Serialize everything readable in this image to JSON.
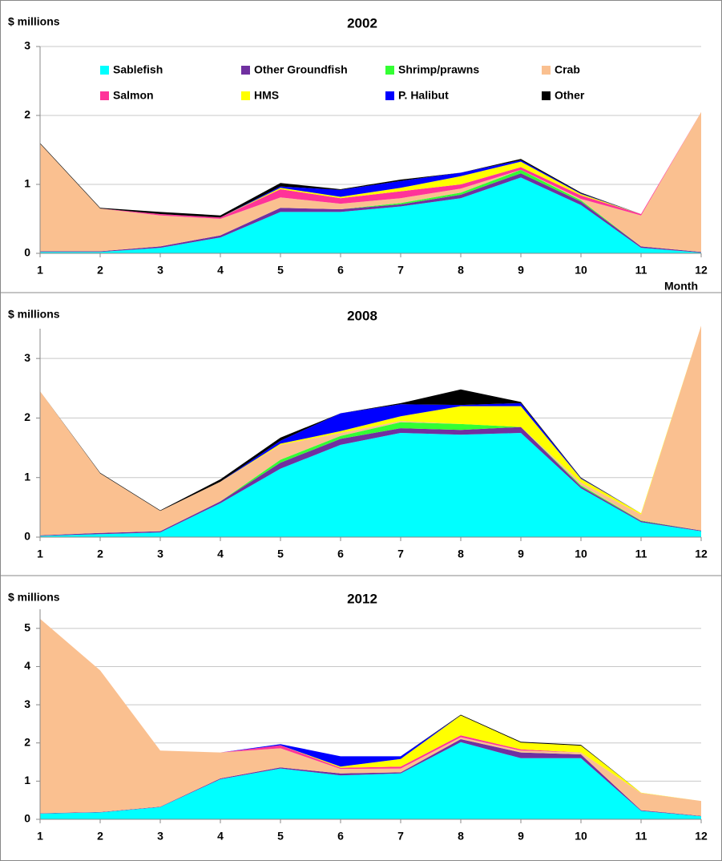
{
  "chart_data": [
    {
      "type": "stacked-area",
      "title": "2002",
      "ylabel": "$ millions",
      "xlabel": "Month",
      "x": [
        1,
        2,
        3,
        4,
        5,
        6,
        7,
        8,
        9,
        10,
        11,
        12
      ],
      "xlim": [
        1,
        12
      ],
      "ylim": [
        0,
        3
      ],
      "yticks": [
        0,
        1,
        2,
        3
      ],
      "grid": true,
      "legend": "top",
      "series": [
        {
          "name": "Sablefish",
          "color": "#00ffff",
          "values": [
            0.02,
            0.02,
            0.08,
            0.23,
            0.6,
            0.6,
            0.68,
            0.8,
            1.1,
            0.7,
            0.08,
            0.01
          ]
        },
        {
          "name": "Other Groundfish",
          "color": "#7030a0",
          "values": [
            0.01,
            0.01,
            0.02,
            0.03,
            0.06,
            0.04,
            0.03,
            0.05,
            0.06,
            0.05,
            0.02,
            0.01
          ]
        },
        {
          "name": "Shrimp/prawns",
          "color": "#33ff33",
          "values": [
            0,
            0,
            0,
            0,
            0,
            0,
            0.02,
            0.03,
            0.05,
            0.02,
            0,
            0
          ]
        },
        {
          "name": "Crab",
          "color": "#fac090",
          "values": [
            1.56,
            0.62,
            0.45,
            0.24,
            0.15,
            0.08,
            0.07,
            0.06,
            0,
            0.02,
            0.45,
            2.03
          ]
        },
        {
          "name": "Salmon",
          "color": "#ff3399",
          "values": [
            0,
            0,
            0.02,
            0.02,
            0.12,
            0.08,
            0.1,
            0.06,
            0.04,
            0.05,
            0.02,
            0
          ]
        },
        {
          "name": "HMS",
          "color": "#ffff00",
          "values": [
            0,
            0,
            0,
            0,
            0.02,
            0.02,
            0.05,
            0.12,
            0.08,
            0.02,
            0,
            0
          ]
        },
        {
          "name": "P. Halibut",
          "color": "#0000ff",
          "values": [
            0,
            0,
            0,
            0,
            0.02,
            0.1,
            0.1,
            0.05,
            0.02,
            0.01,
            0,
            0
          ]
        },
        {
          "name": "Other",
          "color": "#000000",
          "values": [
            0.01,
            0.01,
            0.03,
            0.03,
            0.05,
            0.01,
            0.02,
            0,
            0.02,
            0.01,
            0,
            0
          ]
        }
      ]
    },
    {
      "type": "stacked-area",
      "title": "2008",
      "ylabel": "$ millions",
      "x": [
        1,
        2,
        3,
        4,
        5,
        6,
        7,
        8,
        9,
        10,
        11,
        12
      ],
      "xlim": [
        1,
        12
      ],
      "ylim": [
        0,
        3.5
      ],
      "yticks": [
        0,
        1,
        2,
        3
      ],
      "grid": true,
      "series": [
        {
          "color": "#00ffff",
          "values": [
            0.02,
            0.05,
            0.08,
            0.57,
            1.15,
            1.55,
            1.75,
            1.72,
            1.75,
            0.82,
            0.25,
            0.1
          ]
        },
        {
          "color": "#7030a0",
          "values": [
            0.01,
            0.02,
            0.02,
            0.03,
            0.1,
            0.1,
            0.08,
            0.08,
            0.1,
            0.03,
            0.02,
            0.01
          ]
        },
        {
          "color": "#33ff33",
          "values": [
            0,
            0,
            0,
            0,
            0.05,
            0.05,
            0.1,
            0.1,
            0,
            0.02,
            0.01,
            0
          ]
        },
        {
          "color": "#fac090",
          "values": [
            2.42,
            1.0,
            0.34,
            0.33,
            0.25,
            0.05,
            0.02,
            0,
            0,
            0.05,
            0.1,
            3.44
          ]
        },
        {
          "color": "#ff3399",
          "values": [
            0,
            0,
            0,
            0,
            0,
            0,
            0,
            0,
            0,
            0,
            0,
            0
          ]
        },
        {
          "color": "#ffff00",
          "values": [
            0,
            0,
            0,
            0,
            0.02,
            0.03,
            0.08,
            0.3,
            0.35,
            0.06,
            0.02,
            0
          ]
        },
        {
          "color": "#0000ff",
          "values": [
            0,
            0,
            0,
            0,
            0.05,
            0.3,
            0.2,
            0.02,
            0.05,
            0.01,
            0,
            0
          ]
        },
        {
          "color": "#000000",
          "values": [
            0,
            0.01,
            0.01,
            0.04,
            0.05,
            0,
            0.02,
            0.26,
            0.02,
            0.01,
            0,
            0
          ]
        }
      ]
    },
    {
      "type": "stacked-area",
      "title": "2012",
      "ylabel": "$ millions",
      "x": [
        1,
        2,
        3,
        4,
        5,
        6,
        7,
        8,
        9,
        10,
        11,
        12
      ],
      "xlim": [
        1,
        12
      ],
      "ylim": [
        0,
        5.5
      ],
      "yticks": [
        0,
        1,
        2,
        3,
        4,
        5
      ],
      "grid": true,
      "series": [
        {
          "color": "#00ffff",
          "values": [
            0.15,
            0.18,
            0.32,
            1.05,
            1.33,
            1.15,
            1.2,
            2.02,
            1.6,
            1.6,
            0.22,
            0.08
          ]
        },
        {
          "color": "#7030a0",
          "values": [
            0.01,
            0.01,
            0.01,
            0.02,
            0.03,
            0.05,
            0.03,
            0.08,
            0.15,
            0.1,
            0.02,
            0.01
          ]
        },
        {
          "color": "#33ff33",
          "values": [
            0,
            0,
            0,
            0,
            0,
            0,
            0,
            0,
            0,
            0,
            0,
            0
          ]
        },
        {
          "color": "#fac090",
          "values": [
            5.09,
            3.71,
            1.47,
            0.68,
            0.5,
            0.12,
            0.1,
            0.05,
            0.05,
            0.05,
            0.45,
            0.39
          ]
        },
        {
          "color": "#ff3399",
          "values": [
            0,
            0,
            0,
            0,
            0.08,
            0.03,
            0.05,
            0.05,
            0.03,
            0,
            0,
            0
          ]
        },
        {
          "color": "#ffff00",
          "values": [
            0,
            0,
            0,
            0,
            0,
            0.03,
            0.2,
            0.52,
            0.18,
            0.18,
            0.01,
            0
          ]
        },
        {
          "color": "#0000ff",
          "values": [
            0,
            0,
            0,
            0,
            0.03,
            0.27,
            0.07,
            0,
            0,
            0,
            0,
            0
          ]
        },
        {
          "color": "#000000",
          "values": [
            0,
            0,
            0,
            0,
            0,
            0,
            0,
            0.02,
            0.02,
            0.02,
            0,
            0
          ]
        }
      ]
    }
  ]
}
